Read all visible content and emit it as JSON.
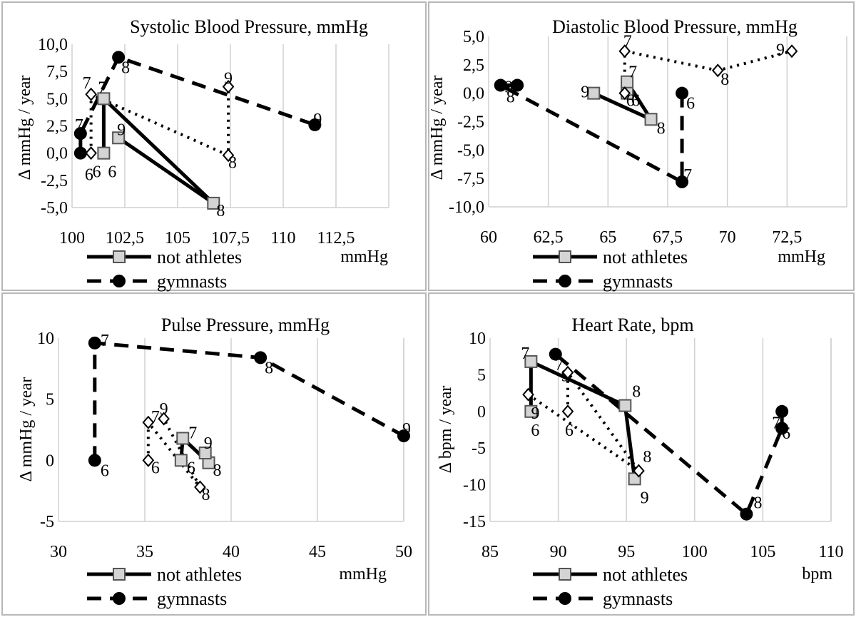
{
  "chart_data": [
    {
      "type": "line",
      "title": "Systolic Blood Pressure, mmHg",
      "xlabel": "mmHg",
      "ylabel": "Δ mmHg / year",
      "xlim": [
        100,
        115
      ],
      "ylim": [
        -5,
        10
      ],
      "x_ticks": [
        "100",
        "102,5",
        "105",
        "107,5",
        "110",
        "112,5"
      ],
      "y_ticks": [
        "10,0",
        "7,5",
        "5,0",
        "2,5",
        "0,0",
        "-2,5",
        "-5,0"
      ],
      "legend": [
        "not athletes",
        "gymnasts"
      ],
      "legend_position": "bottom-left",
      "series": [
        {
          "name": "not athletes",
          "style": "solid",
          "marker": "square",
          "points": [
            {
              "x": 101.5,
              "y": 0,
              "label": "6"
            },
            {
              "x": 101.5,
              "y": 5.0,
              "label": "7"
            },
            {
              "x": 106.7,
              "y": -4.6,
              "label": "8"
            },
            {
              "x": 102.2,
              "y": 1.4,
              "label": "9"
            }
          ]
        },
        {
          "name": "gymnasts",
          "style": "dashed",
          "marker": "circle",
          "points": [
            {
              "x": 100.4,
              "y": 0,
              "label": "6"
            },
            {
              "x": 100.4,
              "y": 1.8,
              "label": "7"
            },
            {
              "x": 102.2,
              "y": 8.8,
              "label": "8"
            },
            {
              "x": 111.5,
              "y": 2.6,
              "label": "9"
            }
          ]
        },
        {
          "name": "unlabeled (diamond)",
          "style": "dotted",
          "marker": "diamond",
          "points": [
            {
              "x": 100.9,
              "y": 0,
              "label": "6"
            },
            {
              "x": 100.9,
              "y": 5.4,
              "label": "7"
            },
            {
              "x": 107.4,
              "y": -0.2,
              "label": "8"
            },
            {
              "x": 107.4,
              "y": 6.1,
              "label": "9"
            }
          ]
        }
      ]
    },
    {
      "type": "line",
      "title": "Diastolic Blood Pressure, mmHg",
      "xlabel": "mmHg",
      "ylabel": "Δ mmHg / year",
      "xlim": [
        60,
        75
      ],
      "ylim": [
        -10,
        5
      ],
      "x_ticks": [
        "60",
        "62,5",
        "65",
        "67,5",
        "70",
        "72,5"
      ],
      "y_ticks": [
        "5,0",
        "2,5",
        "0,0",
        "-2,5",
        "-5,0",
        "-7,5",
        "-10,0"
      ],
      "legend": [
        "not athletes",
        "gymnasts"
      ],
      "legend_position": "bottom-left",
      "series": [
        {
          "name": "not athletes",
          "style": "solid",
          "marker": "square",
          "points": [
            {
              "x": 65.8,
              "y": 0,
              "label": "6"
            },
            {
              "x": 65.8,
              "y": 1.0,
              "label": "7"
            },
            {
              "x": 66.8,
              "y": -2.3,
              "label": "8"
            },
            {
              "x": 64.4,
              "y": 0,
              "label": "9"
            }
          ]
        },
        {
          "name": "gymnasts",
          "style": "dashed",
          "marker": "circle",
          "points": [
            {
              "x": 68.1,
              "y": 0,
              "label": "6"
            },
            {
              "x": 68.1,
              "y": -7.8,
              "label": "7"
            },
            {
              "x": 60.5,
              "y": 0.7,
              "label": "8"
            },
            {
              "x": 61.2,
              "y": 0.7,
              "label": "9"
            }
          ]
        },
        {
          "name": "unlabeled (diamond)",
          "style": "dotted",
          "marker": "diamond",
          "points": [
            {
              "x": 65.7,
              "y": 0,
              "label": "6"
            },
            {
              "x": 65.7,
              "y": 3.7,
              "label": "7"
            },
            {
              "x": 69.6,
              "y": 2.0,
              "label": "8"
            },
            {
              "x": 72.7,
              "y": 3.7,
              "label": "9"
            }
          ]
        }
      ]
    },
    {
      "type": "line",
      "title": "Pulse Pressure, mmHg",
      "xlabel": "mmHg",
      "ylabel": "Δ mmHg / year",
      "xlim": [
        30,
        50
      ],
      "ylim": [
        -5,
        10
      ],
      "x_ticks": [
        "30",
        "35",
        "40",
        "45",
        "50"
      ],
      "y_ticks": [
        "10",
        "5",
        "0",
        "-5"
      ],
      "legend": [
        "not athletes",
        "gymnasts"
      ],
      "legend_position": "bottom-left",
      "series": [
        {
          "name": "not athletes",
          "style": "solid",
          "marker": "square",
          "points": [
            {
              "x": 37.1,
              "y": 0,
              "label": "6"
            },
            {
              "x": 37.2,
              "y": 1.8,
              "label": "7"
            },
            {
              "x": 38.7,
              "y": -0.2,
              "label": "8"
            },
            {
              "x": 38.5,
              "y": 0.6,
              "label": "9"
            }
          ]
        },
        {
          "name": "gymnasts",
          "style": "dashed",
          "marker": "circle",
          "points": [
            {
              "x": 32.1,
              "y": 0,
              "label": "6"
            },
            {
              "x": 32.1,
              "y": 9.6,
              "label": "7"
            },
            {
              "x": 41.7,
              "y": 8.4,
              "label": "8"
            },
            {
              "x": 50.0,
              "y": 2.0,
              "label": "9"
            }
          ]
        },
        {
          "name": "unlabeled (diamond)",
          "style": "dotted",
          "marker": "diamond",
          "points": [
            {
              "x": 35.2,
              "y": 0,
              "label": "6"
            },
            {
              "x": 35.2,
              "y": 3.1,
              "label": "7"
            },
            {
              "x": 38.2,
              "y": -2.2,
              "label": "8"
            },
            {
              "x": 36.1,
              "y": 3.4,
              "label": "9"
            }
          ]
        }
      ]
    },
    {
      "type": "line",
      "title": "Heart Rate, bpm",
      "xlabel": "bpm",
      "ylabel": "Δ bpm / year",
      "xlim": [
        85,
        110
      ],
      "ylim": [
        -15,
        10
      ],
      "x_ticks": [
        "85",
        "90",
        "95",
        "100",
        "105",
        "110"
      ],
      "y_ticks": [
        "10",
        "5",
        "0",
        "-5",
        "-10",
        "-15"
      ],
      "legend": [
        "not athletes",
        "gymnasts"
      ],
      "legend_position": "bottom-left",
      "series": [
        {
          "name": "not athletes",
          "style": "solid",
          "marker": "square",
          "points": [
            {
              "x": 88.0,
              "y": 0,
              "label": "6"
            },
            {
              "x": 88.0,
              "y": 6.8,
              "label": "7"
            },
            {
              "x": 94.9,
              "y": 0.8,
              "label": "8"
            },
            {
              "x": 95.6,
              "y": -9.2,
              "label": "9"
            }
          ]
        },
        {
          "name": "gymnasts",
          "style": "dashed",
          "marker": "circle",
          "points": [
            {
              "x": 106.4,
              "y": 0,
              "label": "6"
            },
            {
              "x": 106.4,
              "y": -2.3,
              "label": "7"
            },
            {
              "x": 103.8,
              "y": -14.0,
              "label": "8"
            },
            {
              "x": 89.8,
              "y": 7.8,
              "label": "9"
            }
          ]
        },
        {
          "name": "unlabeled (diamond)",
          "style": "dotted",
          "marker": "diamond",
          "points": [
            {
              "x": 90.7,
              "y": 0,
              "label": "6"
            },
            {
              "x": 90.7,
              "y": 5.3,
              "label": "7"
            },
            {
              "x": 95.9,
              "y": -8.1,
              "label": "8"
            },
            {
              "x": 87.8,
              "y": 2.3,
              "label": "9"
            }
          ]
        }
      ]
    }
  ]
}
